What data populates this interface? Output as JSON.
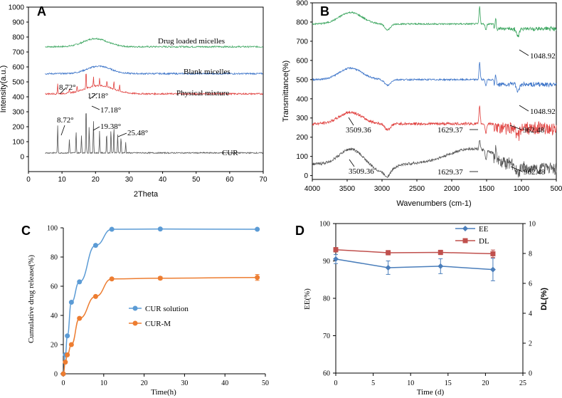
{
  "chart_data": [
    {
      "panel": "A",
      "type": "line",
      "xlabel": "2Theta",
      "ylabel": "Intensity(a.u.)",
      "xlim": [
        0,
        70
      ],
      "ylim": [
        -100,
        1000
      ],
      "xticks": [
        0,
        10,
        20,
        30,
        40,
        50,
        60,
        70
      ],
      "yticks": [
        0,
        100,
        200,
        300,
        400,
        500,
        600,
        700,
        800,
        900,
        1000
      ],
      "series": [
        {
          "name": "Drug loaded micelles",
          "color": "#3aa55e",
          "baseline": 735,
          "hump": 55,
          "center": 20,
          "width": 5
        },
        {
          "name": "Blank micelles",
          "color": "#3b73c8",
          "baseline": 555,
          "hump": 50,
          "center": 21,
          "width": 5
        },
        {
          "name": "Physical mixture",
          "color": "#e0403e",
          "baseline": 420,
          "hump": 55,
          "center": 21,
          "width": 6,
          "peaks": [
            [
              8.72,
              70
            ],
            [
              12.2,
              30
            ],
            [
              14.5,
              40
            ],
            [
              17.18,
              120
            ],
            [
              19.38,
              60
            ],
            [
              21.2,
              50
            ],
            [
              23.4,
              45
            ],
            [
              25.48,
              55
            ],
            [
              27.2,
              40
            ]
          ]
        },
        {
          "name": "CUR",
          "color": "#555555",
          "baseline": 25,
          "hump": 0,
          "center": 20,
          "width": 5,
          "peaks": [
            [
              8.72,
              180
            ],
            [
              12.2,
              90
            ],
            [
              14.2,
              150
            ],
            [
              15.8,
              120
            ],
            [
              17.18,
              340
            ],
            [
              18.1,
              180
            ],
            [
              19.38,
              220
            ],
            [
              21.2,
              150
            ],
            [
              23.3,
              140
            ],
            [
              24.6,
              160
            ],
            [
              25.48,
              180
            ],
            [
              26.6,
              120
            ],
            [
              27.6,
              110
            ],
            [
              29.0,
              70
            ]
          ]
        }
      ],
      "annotations": [
        "8.72°",
        "17.18°",
        "8.72°",
        "17.18°",
        "19.38°",
        "25.48°"
      ],
      "title": "A"
    },
    {
      "panel": "B",
      "type": "line",
      "xlabel": "Wavenumbers (cm-1)",
      "ylabel": "Transmittance(%)",
      "xlim": [
        4000,
        500
      ],
      "ylim": [
        -20,
        900
      ],
      "xticks": [
        4000,
        3500,
        3000,
        2500,
        2000,
        1500,
        1000,
        500
      ],
      "yticks": [
        0,
        100,
        200,
        300,
        400,
        500,
        600,
        700,
        800,
        900
      ],
      "series": [
        {
          "name": "Drug loaded micelles",
          "color": "#3aa55e",
          "offset": 790
        },
        {
          "name": "Blank micelles",
          "color": "#3b73c8",
          "offset": 500
        },
        {
          "name": "Physical mixture",
          "color": "#e0403e",
          "offset": 270
        },
        {
          "name": "CUR",
          "color": "#555555",
          "offset": 60
        }
      ],
      "annotations": [
        "1048.92",
        "1048.92",
        "3509.36",
        "1629.37",
        "962.48",
        "3509.36",
        "1629.37",
        "962.48"
      ],
      "title": "B"
    },
    {
      "panel": "C",
      "type": "line",
      "xlabel": "Time(h)",
      "ylabel": "Cumulative drug release(%)",
      "xlim": [
        0,
        50
      ],
      "ylim": [
        0,
        100
      ],
      "xticks": [
        0,
        10,
        20,
        30,
        40,
        50
      ],
      "yticks": [
        0,
        20,
        40,
        60,
        80,
        100
      ],
      "series": [
        {
          "name": "CUR solution",
          "color": "#5b9bd5",
          "x": [
            0,
            0.5,
            1,
            2,
            4,
            8,
            12,
            24,
            48
          ],
          "y": [
            0,
            13,
            26,
            49,
            63,
            88,
            99,
            99.2,
            99
          ],
          "err": [
            0,
            0,
            0,
            0,
            0,
            0,
            0,
            0,
            0
          ]
        },
        {
          "name": "CUR-M",
          "color": "#ed7d31",
          "x": [
            0,
            0.5,
            1,
            2,
            4,
            8,
            12,
            24,
            48
          ],
          "y": [
            0,
            8,
            13,
            20,
            38,
            53,
            65,
            65.5,
            66
          ],
          "err": [
            0,
            0,
            0,
            0,
            0,
            0,
            0,
            1,
            2
          ]
        }
      ],
      "title": "C"
    },
    {
      "panel": "D",
      "type": "line",
      "xlabel": "Time (d)",
      "ylabel": "EE(%)",
      "ylabel2": "DL(%)",
      "xlim": [
        0,
        25
      ],
      "ylim": [
        60,
        100
      ],
      "ylim2": [
        0,
        10
      ],
      "xticks": [
        0,
        5,
        10,
        15,
        20,
        25
      ],
      "yticks": [
        60,
        70,
        80,
        90,
        100
      ],
      "yticks2": [
        0,
        2,
        4,
        6,
        8,
        10
      ],
      "series": [
        {
          "name": "EE",
          "color": "#4a7ebb",
          "axis": "left",
          "x": [
            0,
            7,
            14,
            21
          ],
          "y": [
            90.5,
            88.2,
            88.6,
            87.7
          ],
          "err": [
            1.2,
            1.8,
            2.0,
            3.0
          ]
        },
        {
          "name": "DL",
          "color": "#c0504d",
          "axis": "right",
          "x": [
            0,
            7,
            14,
            21
          ],
          "y": [
            8.25,
            8.05,
            8.07,
            7.98
          ],
          "err": [
            0.15,
            0.15,
            0.15,
            0.25
          ]
        }
      ],
      "title": "D"
    }
  ]
}
